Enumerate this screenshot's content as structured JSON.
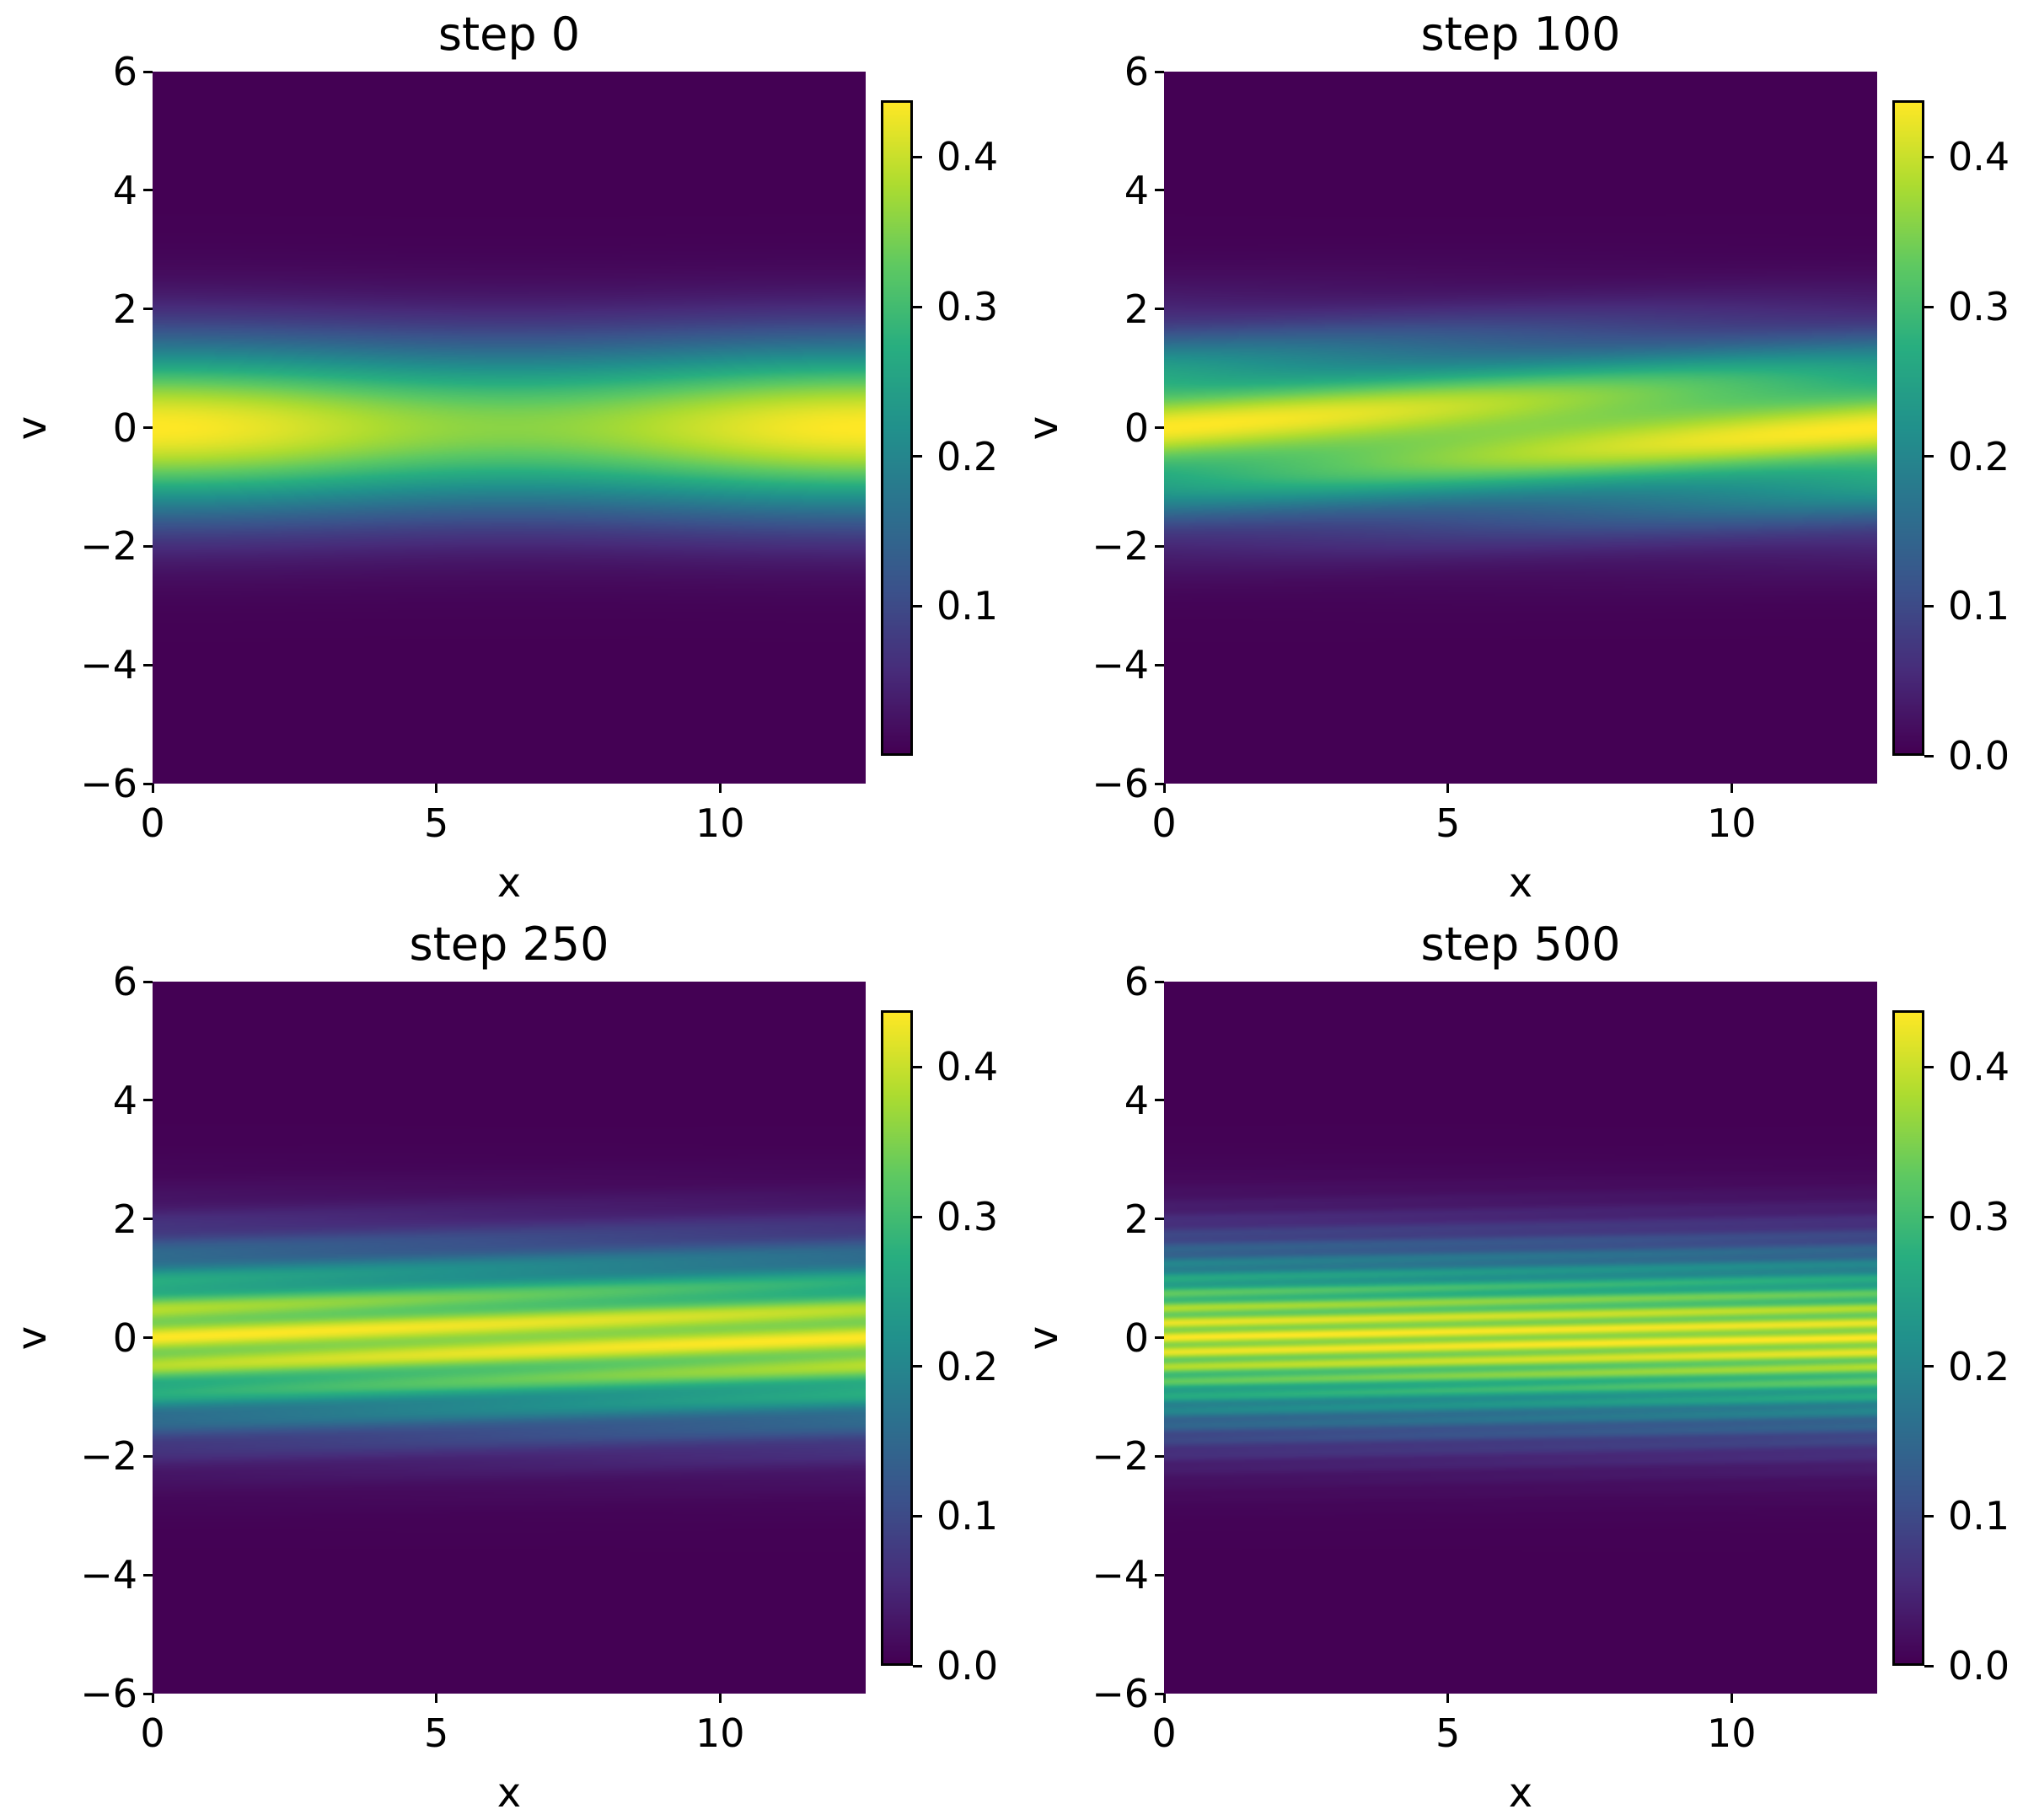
{
  "colormap": {
    "name": "viridis",
    "stops": [
      "#440154",
      "#472c7a",
      "#3b528b",
      "#2c728e",
      "#21918c",
      "#28ae80",
      "#5ec962",
      "#addc30",
      "#fde725"
    ]
  },
  "chart_data": [
    {
      "type": "heatmap",
      "title": "step 0",
      "step": 0,
      "xlabel": "x",
      "ylabel": "v",
      "xlim": [
        0,
        12.566
      ],
      "ylim": [
        -6,
        6
      ],
      "clim": [
        0,
        0.438
      ],
      "xticks": [
        {
          "value": 0,
          "label": "0"
        },
        {
          "value": 5,
          "label": "5"
        },
        {
          "value": 10,
          "label": "10"
        }
      ],
      "yticks": [
        {
          "value": -6,
          "label": "−6"
        },
        {
          "value": -4,
          "label": "−4"
        },
        {
          "value": -2,
          "label": "−2"
        },
        {
          "value": 0,
          "label": "0"
        },
        {
          "value": 2,
          "label": "2"
        },
        {
          "value": 4,
          "label": "4"
        },
        {
          "value": 6,
          "label": "6"
        }
      ],
      "cticks": [
        {
          "value": 0.1,
          "label": "0.1"
        },
        {
          "value": 0.2,
          "label": "0.2"
        },
        {
          "value": 0.3,
          "label": "0.3"
        },
        {
          "value": 0.4,
          "label": "0.4"
        }
      ],
      "model": {
        "f": "exp(-v^2/2)/sqrt(2pi)*(1+a*cos(k*(x-v*t)))",
        "a": 0.1,
        "k": 0.5,
        "t": 0
      }
    },
    {
      "type": "heatmap",
      "title": "step 100",
      "step": 100,
      "xlabel": "x",
      "ylabel": "v",
      "xlim": [
        0,
        12.566
      ],
      "ylim": [
        -6,
        6
      ],
      "clim": [
        0,
        0.438
      ],
      "xticks": [
        {
          "value": 0,
          "label": "0"
        },
        {
          "value": 5,
          "label": "5"
        },
        {
          "value": 10,
          "label": "10"
        }
      ],
      "yticks": [
        {
          "value": -6,
          "label": "−6"
        },
        {
          "value": -4,
          "label": "−4"
        },
        {
          "value": -2,
          "label": "−2"
        },
        {
          "value": 0,
          "label": "0"
        },
        {
          "value": 2,
          "label": "2"
        },
        {
          "value": 4,
          "label": "4"
        },
        {
          "value": 6,
          "label": "6"
        }
      ],
      "cticks": [
        {
          "value": 0.0,
          "label": "0.0"
        },
        {
          "value": 0.1,
          "label": "0.1"
        },
        {
          "value": 0.2,
          "label": "0.2"
        },
        {
          "value": 0.3,
          "label": "0.3"
        },
        {
          "value": 0.4,
          "label": "0.4"
        }
      ],
      "model": {
        "f": "exp(-v^2/2)/sqrt(2pi)*(1+a*cos(k*(x-v*t)))",
        "a": 0.1,
        "k": 0.5,
        "t": 10
      }
    },
    {
      "type": "heatmap",
      "title": "step 250",
      "step": 250,
      "xlabel": "x",
      "ylabel": "v",
      "xlim": [
        0,
        12.566
      ],
      "ylim": [
        -6,
        6
      ],
      "clim": [
        0,
        0.438
      ],
      "xticks": [
        {
          "value": 0,
          "label": "0"
        },
        {
          "value": 5,
          "label": "5"
        },
        {
          "value": 10,
          "label": "10"
        }
      ],
      "yticks": [
        {
          "value": -6,
          "label": "−6"
        },
        {
          "value": -4,
          "label": "−4"
        },
        {
          "value": -2,
          "label": "−2"
        },
        {
          "value": 0,
          "label": "0"
        },
        {
          "value": 2,
          "label": "2"
        },
        {
          "value": 4,
          "label": "4"
        },
        {
          "value": 6,
          "label": "6"
        }
      ],
      "cticks": [
        {
          "value": 0.0,
          "label": "0.0"
        },
        {
          "value": 0.1,
          "label": "0.1"
        },
        {
          "value": 0.2,
          "label": "0.2"
        },
        {
          "value": 0.3,
          "label": "0.3"
        },
        {
          "value": 0.4,
          "label": "0.4"
        }
      ],
      "model": {
        "f": "exp(-v^2/2)/sqrt(2pi)*(1+a*cos(k*(x-v*t)))",
        "a": 0.1,
        "k": 0.5,
        "t": 25
      }
    },
    {
      "type": "heatmap",
      "title": "step 500",
      "step": 500,
      "xlabel": "x",
      "ylabel": "v",
      "xlim": [
        0,
        12.566
      ],
      "ylim": [
        -6,
        6
      ],
      "clim": [
        0,
        0.438
      ],
      "xticks": [
        {
          "value": 0,
          "label": "0"
        },
        {
          "value": 5,
          "label": "5"
        },
        {
          "value": 10,
          "label": "10"
        }
      ],
      "yticks": [
        {
          "value": -6,
          "label": "−6"
        },
        {
          "value": -4,
          "label": "−4"
        },
        {
          "value": -2,
          "label": "−2"
        },
        {
          "value": 0,
          "label": "0"
        },
        {
          "value": 2,
          "label": "2"
        },
        {
          "value": 4,
          "label": "4"
        },
        {
          "value": 6,
          "label": "6"
        }
      ],
      "cticks": [
        {
          "value": 0.0,
          "label": "0.0"
        },
        {
          "value": 0.1,
          "label": "0.1"
        },
        {
          "value": 0.2,
          "label": "0.2"
        },
        {
          "value": 0.3,
          "label": "0.3"
        },
        {
          "value": 0.4,
          "label": "0.4"
        }
      ],
      "model": {
        "f": "exp(-v^2/2)/sqrt(2pi)*(1+a*cos(k*(x-v*t)))",
        "a": 0.1,
        "k": 0.5,
        "t": 50
      }
    }
  ]
}
